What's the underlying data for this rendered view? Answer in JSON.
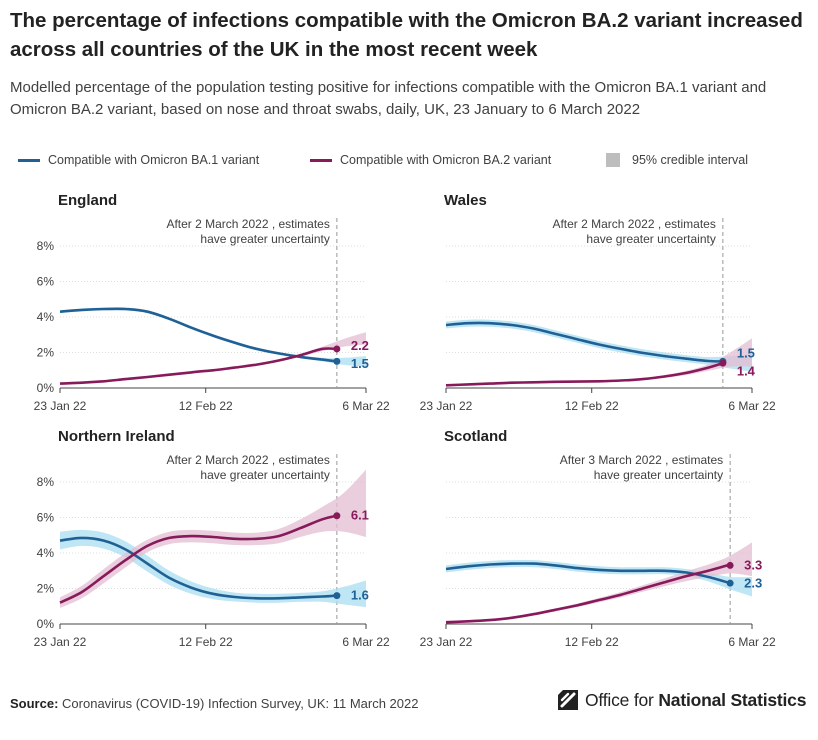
{
  "title": "The percentage of infections compatible with the Omicron BA.2 variant increased across all countries of the UK in the most recent week",
  "subtitle": "Modelled percentage of the population testing positive for infections compatible with the Omicron BA.1 variant and Omicron BA.2 variant, based on nose and throat swabs, daily, UK, 23 January to 6 March 2022",
  "legend": {
    "ba1": "Compatible with Omicron BA.1 variant",
    "ba2": "Compatible with Omicron BA.2 variant",
    "ci": "95% credible interval"
  },
  "colors": {
    "ba1": "#206095",
    "ba2": "#871A5B",
    "ba1_ci": "#A8DDF0",
    "ba2_ci": "#E3BDD1",
    "ref_line": "#999999"
  },
  "source": {
    "label": "Source:",
    "text": "Coronavirus (COVID-19) Infection Survey, UK: 11 March 2022"
  },
  "logo": {
    "prefix": "Office for ",
    "bold": "National Statistics"
  },
  "chart_data": [
    {
      "type": "line",
      "title": "England",
      "annotation": [
        "After 2 March 2022 , estimates",
        "have greater uncertainty"
      ],
      "annotation_day": 38,
      "x_ticks": [
        {
          "day": 0,
          "label": "23 Jan 22"
        },
        {
          "day": 20,
          "label": "12 Feb 22"
        },
        {
          "day": 42,
          "label": "6 Mar 22"
        }
      ],
      "y_ticks": [
        "0%",
        "2%",
        "4%",
        "6%",
        "8%"
      ],
      "ylim": [
        0,
        8
      ],
      "show_y_labels": true,
      "series": [
        {
          "key": "ba1",
          "name": "Compatible with Omicron BA.1 variant",
          "end_label": "1.5",
          "x": [
            0,
            3,
            6,
            9,
            12,
            15,
            18,
            21,
            24,
            27,
            30,
            33,
            36,
            39,
            42
          ],
          "values": [
            4.3,
            4.4,
            4.45,
            4.45,
            4.3,
            3.9,
            3.4,
            2.95,
            2.55,
            2.2,
            1.95,
            1.75,
            1.6,
            1.5,
            1.5
          ],
          "ci_width": [
            0.08,
            0.08,
            0.08,
            0.08,
            0.08,
            0.08,
            0.08,
            0.08,
            0.08,
            0.08,
            0.08,
            0.08,
            0.1,
            0.2,
            0.3
          ]
        },
        {
          "key": "ba2",
          "name": "Compatible with Omicron BA.2 variant",
          "end_label": "2.2",
          "x": [
            0,
            3,
            6,
            9,
            12,
            15,
            18,
            21,
            24,
            27,
            30,
            33,
            36,
            39,
            42
          ],
          "values": [
            0.25,
            0.3,
            0.38,
            0.5,
            0.62,
            0.75,
            0.88,
            1.0,
            1.15,
            1.32,
            1.55,
            1.85,
            2.2,
            2.55,
            2.8
          ],
          "ci_width": [
            0.05,
            0.05,
            0.05,
            0.05,
            0.05,
            0.05,
            0.05,
            0.05,
            0.05,
            0.05,
            0.06,
            0.08,
            0.12,
            0.22,
            0.35
          ]
        }
      ],
      "end_points": {
        "day": 38,
        "ba1": 1.5,
        "ba2": 2.2
      }
    },
    {
      "type": "line",
      "title": "Wales",
      "annotation": [
        "After 2 March 2022 , estimates",
        "have greater uncertainty"
      ],
      "annotation_day": 38,
      "x_ticks": [
        {
          "day": 0,
          "label": "23 Jan 22"
        },
        {
          "day": 20,
          "label": "12 Feb 22"
        },
        {
          "day": 42,
          "label": "6 Mar 22"
        }
      ],
      "y_ticks": [
        "0%",
        "2%",
        "4%",
        "6%",
        "8%"
      ],
      "ylim": [
        0,
        8
      ],
      "show_y_labels": false,
      "series": [
        {
          "key": "ba1",
          "name": "Compatible with Omicron BA.1 variant",
          "end_label": "1.5",
          "x": [
            0,
            3,
            6,
            9,
            12,
            15,
            18,
            21,
            24,
            27,
            30,
            33,
            36,
            39,
            42
          ],
          "values": [
            3.55,
            3.65,
            3.65,
            3.55,
            3.35,
            3.05,
            2.75,
            2.45,
            2.2,
            1.98,
            1.8,
            1.65,
            1.52,
            1.45,
            1.42
          ],
          "ci_width": [
            0.2,
            0.2,
            0.2,
            0.2,
            0.2,
            0.2,
            0.2,
            0.2,
            0.2,
            0.2,
            0.2,
            0.2,
            0.22,
            0.35,
            0.5
          ]
        },
        {
          "key": "ba2",
          "name": "Compatible with Omicron BA.2 variant",
          "end_label": "1.4",
          "x": [
            0,
            3,
            6,
            9,
            12,
            15,
            18,
            21,
            24,
            27,
            30,
            33,
            36,
            39,
            42
          ],
          "values": [
            0.15,
            0.2,
            0.25,
            0.3,
            0.32,
            0.35,
            0.36,
            0.38,
            0.42,
            0.5,
            0.65,
            0.85,
            1.15,
            1.6,
            2.0
          ],
          "ci_width": [
            0.05,
            0.05,
            0.05,
            0.05,
            0.05,
            0.05,
            0.05,
            0.05,
            0.05,
            0.06,
            0.08,
            0.12,
            0.18,
            0.4,
            0.8
          ]
        }
      ],
      "end_points": {
        "day": 38,
        "ba1": 1.5,
        "ba2": 1.4
      }
    },
    {
      "type": "line",
      "title": "Northern Ireland",
      "annotation": [
        "After 2 March 2022 , estimates",
        "have greater uncertainty"
      ],
      "annotation_day": 38,
      "x_ticks": [
        {
          "day": 0,
          "label": "23 Jan 22"
        },
        {
          "day": 20,
          "label": "12 Feb 22"
        },
        {
          "day": 42,
          "label": "6 Mar 22"
        }
      ],
      "y_ticks": [
        "0%",
        "2%",
        "4%",
        "6%",
        "8%"
      ],
      "ylim": [
        0,
        8
      ],
      "show_y_labels": true,
      "series": [
        {
          "key": "ba1",
          "name": "Compatible with Omicron BA.1 variant",
          "end_label": "1.6",
          "x": [
            0,
            3,
            6,
            9,
            12,
            15,
            18,
            21,
            24,
            27,
            30,
            33,
            36,
            39,
            42
          ],
          "values": [
            4.7,
            4.85,
            4.7,
            4.2,
            3.4,
            2.6,
            2.05,
            1.7,
            1.52,
            1.45,
            1.45,
            1.5,
            1.55,
            1.6,
            1.7
          ],
          "ci_width": [
            0.5,
            0.45,
            0.45,
            0.45,
            0.45,
            0.4,
            0.35,
            0.3,
            0.25,
            0.25,
            0.25,
            0.25,
            0.3,
            0.5,
            0.75
          ]
        },
        {
          "key": "ba2",
          "name": "Compatible with Omicron BA.2 variant",
          "end_label": "6.1",
          "x": [
            0,
            3,
            6,
            9,
            12,
            15,
            18,
            21,
            24,
            27,
            30,
            33,
            36,
            39,
            42
          ],
          "values": [
            1.2,
            1.8,
            2.7,
            3.6,
            4.4,
            4.85,
            4.95,
            4.9,
            4.8,
            4.8,
            4.95,
            5.4,
            5.9,
            6.3,
            6.8
          ],
          "ci_width": [
            0.3,
            0.35,
            0.4,
            0.4,
            0.35,
            0.35,
            0.35,
            0.35,
            0.35,
            0.35,
            0.4,
            0.5,
            0.7,
            1.1,
            1.9
          ]
        }
      ],
      "end_points": {
        "day": 38,
        "ba1": 1.6,
        "ba2": 6.1
      }
    },
    {
      "type": "line",
      "title": "Scotland",
      "annotation": [
        "After 3 March 2022 , estimates",
        "have greater uncertainty"
      ],
      "annotation_day": 39,
      "x_ticks": [
        {
          "day": 0,
          "label": "23 Jan 22"
        },
        {
          "day": 20,
          "label": "12 Feb 22"
        },
        {
          "day": 42,
          "label": "6 Mar 22"
        }
      ],
      "y_ticks": [
        "0%",
        "2%",
        "4%",
        "6%",
        "8%"
      ],
      "ylim": [
        0,
        8
      ],
      "show_y_labels": false,
      "series": [
        {
          "key": "ba1",
          "name": "Compatible with Omicron BA.1 variant",
          "end_label": "2.3",
          "x": [
            0,
            3,
            6,
            9,
            12,
            15,
            18,
            21,
            24,
            27,
            30,
            33,
            36,
            39,
            42
          ],
          "values": [
            3.1,
            3.25,
            3.35,
            3.4,
            3.4,
            3.3,
            3.15,
            3.05,
            3.0,
            3.0,
            3.0,
            2.9,
            2.65,
            2.3,
            2.1
          ],
          "ci_width": [
            0.2,
            0.2,
            0.2,
            0.2,
            0.2,
            0.2,
            0.2,
            0.2,
            0.2,
            0.2,
            0.2,
            0.2,
            0.25,
            0.35,
            0.55
          ]
        },
        {
          "key": "ba2",
          "name": "Compatible with Omicron BA.2 variant",
          "end_label": "3.3",
          "x": [
            0,
            3,
            6,
            9,
            12,
            15,
            18,
            21,
            24,
            27,
            30,
            33,
            36,
            39,
            42
          ],
          "values": [
            0.1,
            0.15,
            0.22,
            0.35,
            0.55,
            0.8,
            1.05,
            1.35,
            1.65,
            2.0,
            2.35,
            2.7,
            3.0,
            3.35,
            3.65
          ],
          "ci_width": [
            0.05,
            0.05,
            0.05,
            0.05,
            0.06,
            0.08,
            0.1,
            0.12,
            0.15,
            0.18,
            0.22,
            0.28,
            0.35,
            0.5,
            0.95
          ]
        }
      ],
      "end_points": {
        "day": 39,
        "ba1": 2.3,
        "ba2": 3.3
      }
    }
  ]
}
